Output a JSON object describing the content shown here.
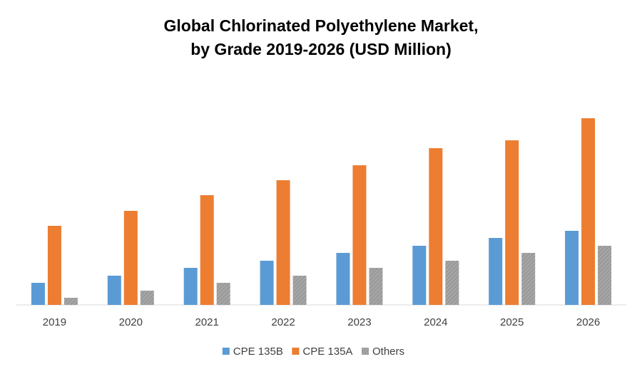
{
  "chart_data": {
    "type": "bar",
    "title": [
      "Global Chlorinated Polyethylene Market,",
      "by Grade 2019-2026 (USD Million)"
    ],
    "categories": [
      "2019",
      "2020",
      "2021",
      "2022",
      "2023",
      "2024",
      "2025",
      "2026"
    ],
    "series": [
      {
        "name": "CPE 135B",
        "color": "#5b9bd5",
        "values": [
          31,
          41,
          52,
          62,
          73,
          83,
          94,
          104
        ]
      },
      {
        "name": "CPE 135A",
        "color": "#ed7d31",
        "values": [
          111,
          132,
          154,
          175,
          196,
          220,
          231,
          262
        ]
      },
      {
        "name": "Others",
        "color": "#a5a5a5",
        "values": [
          10,
          20,
          31,
          41,
          52,
          62,
          73,
          83
        ]
      }
    ],
    "ylim": [
      0,
      290
    ],
    "legend": "bottom"
  }
}
